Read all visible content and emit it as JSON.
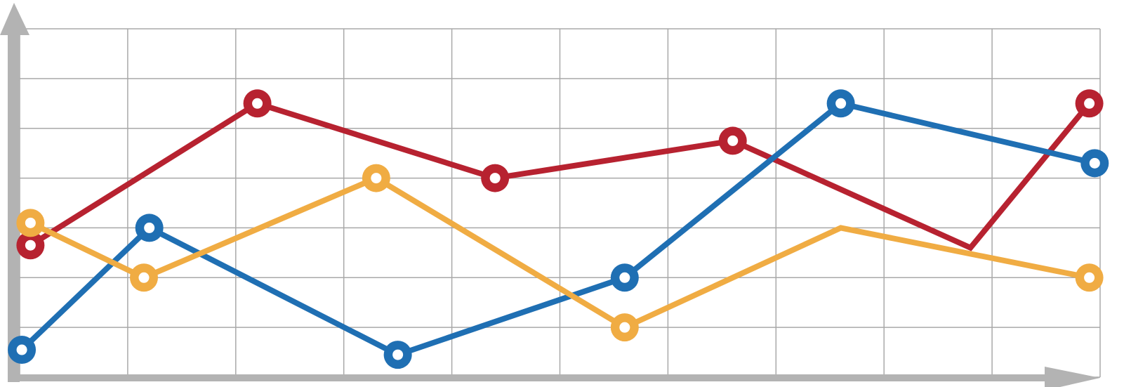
{
  "chart_data": {
    "type": "line",
    "title": "",
    "xlabel": "",
    "ylabel": "",
    "xlim": [
      0,
      10
    ],
    "ylim": [
      0,
      7
    ],
    "grid": true,
    "legend": "none",
    "series": [
      {
        "color": "#b72230",
        "x": [
          0.1,
          2.2,
          4.4,
          6.6,
          8.8,
          9.9
        ],
        "y": [
          2.65,
          5.5,
          4.0,
          4.75,
          2.6,
          5.5
        ]
      },
      {
        "color": "#1f6fb3",
        "x": [
          0.02,
          1.2,
          3.5,
          5.6,
          7.6,
          9.95
        ],
        "y": [
          0.55,
          3.0,
          0.45,
          2.0,
          5.5,
          4.3
        ]
      },
      {
        "color": "#f0ac43",
        "x": [
          0.1,
          1.15,
          3.3,
          5.6,
          7.6,
          9.9
        ],
        "y": [
          3.1,
          2.0,
          4.0,
          1.0,
          3.0,
          2.0
        ]
      }
    ],
    "marker_x": [
      [
        0.1,
        2.2,
        4.4,
        6.6,
        9.9
      ],
      [
        0.02,
        1.2,
        3.5,
        5.6,
        7.6,
        9.95
      ],
      [
        0.1,
        1.15,
        3.3,
        5.6,
        9.9
      ]
    ]
  }
}
